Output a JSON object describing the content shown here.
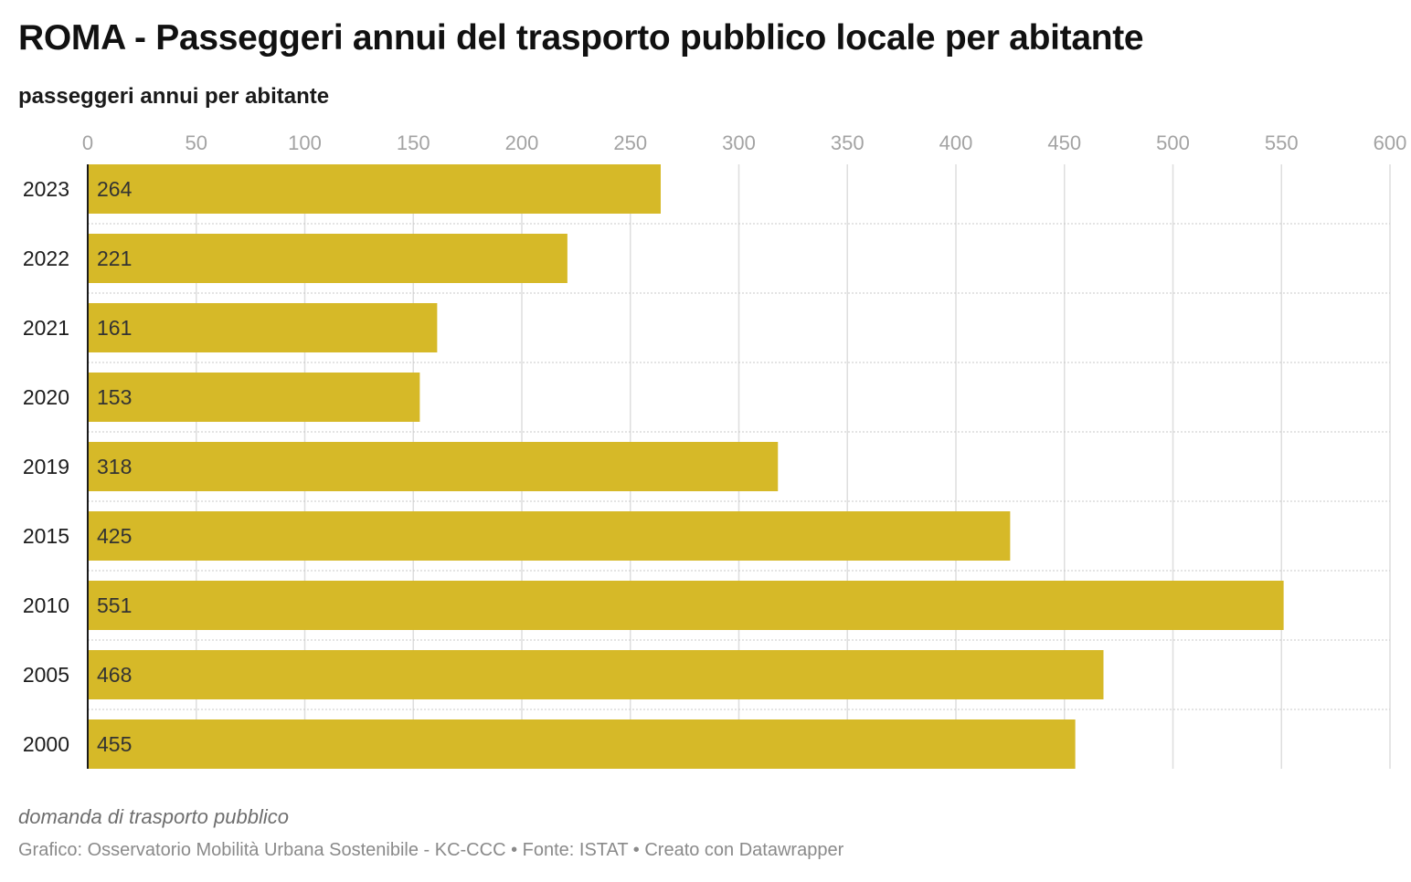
{
  "title": "ROMA - Passeggeri annui del trasporto pubblico locale per abitante",
  "subtitle": "passeggeri annui per abitante",
  "notes": "domanda di trasporto pubblico",
  "credits": "Grafico: Osservatorio Mobilità Urbana Sostenibile - KC-CCC • Fonte: ISTAT • Creato con Datawrapper",
  "colors": {
    "bar": "#d6b928",
    "grid": "#dedede",
    "row_separator": "#c8c8c8",
    "axis": "#1a1a1a",
    "tick_label": "#a3a3a3",
    "category_label": "#1d1d1d",
    "value_label": "#333333"
  },
  "chart_data": {
    "type": "bar",
    "orientation": "horizontal",
    "categories": [
      "2023",
      "2022",
      "2021",
      "2020",
      "2019",
      "2015",
      "2010",
      "2005",
      "2000"
    ],
    "values": [
      264,
      221,
      161,
      153,
      318,
      425,
      551,
      468,
      455
    ],
    "value_labels": [
      "264",
      "221",
      "161",
      "153",
      "318",
      "425",
      "551",
      "468",
      "455"
    ],
    "xlim": [
      0,
      600
    ],
    "xticks": [
      0,
      50,
      100,
      150,
      200,
      250,
      300,
      350,
      400,
      450,
      500,
      550,
      600
    ],
    "xtick_labels": [
      "0",
      "50",
      "100",
      "150",
      "200",
      "250",
      "300",
      "350",
      "400",
      "450",
      "500",
      "550",
      "600"
    ],
    "tick_position": "top",
    "grid": true,
    "legend": "none"
  }
}
